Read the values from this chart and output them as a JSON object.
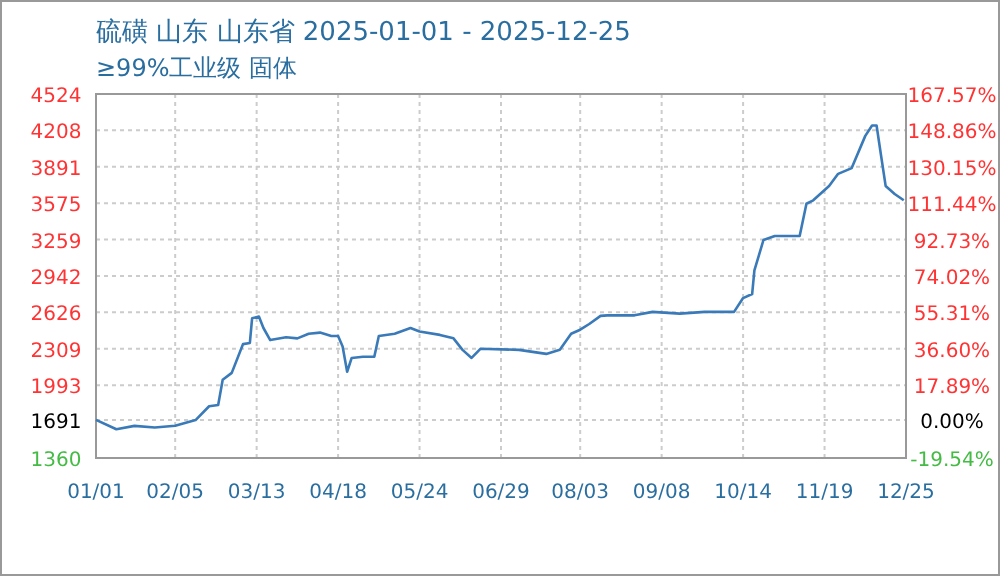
{
  "chart_data": {
    "type": "line",
    "title": "硫磺 山东 山东省 2025-01-01 - 2025-12-25",
    "subtitle": "≥99%工业级 固体",
    "x": [
      "--01-01",
      "--01-10",
      "--01-18",
      "--01-27",
      "--02-05",
      "--02-14",
      "--02-20",
      "--02-24",
      "--02-26",
      "--03-02",
      "--03-07",
      "--03-10",
      "--03-11",
      "--03-14",
      "--03-16",
      "--03-19",
      "--03-26",
      "--03-31",
      "--04-05",
      "--04-10",
      "--04-15",
      "--04-18",
      "--04-20",
      "--04-22",
      "--04-24",
      "--04-29",
      "--05-04",
      "--05-06",
      "--05-13",
      "--05-20",
      "--05-24",
      "--06-02",
      "--06-08",
      "--06-12",
      "--06-16",
      "--06-20",
      "--07-07",
      "--07-19",
      "--07-25",
      "--07-30",
      "--08-03",
      "--08-07",
      "--08-12",
      "--08-15",
      "--08-27",
      "--09-04",
      "--09-16",
      "--09-27",
      "--10-10",
      "--10-14",
      "--10-18",
      "--10-19",
      "--10-23",
      "--10-28",
      "--11-08",
      "--11-11",
      "--11-14",
      "--11-21",
      "--11-25",
      "--12-01",
      "--12-07",
      "--12-10",
      "--12-12",
      "--12-14",
      "--12-16",
      "--12-20",
      "--12-24"
    ],
    "series": [
      {
        "color": "#3a7ab8",
        "values": [
          1691,
          1610,
          1639,
          1625,
          1640,
          1690,
          1810,
          1820,
          2040,
          2100,
          2350,
          2360,
          2575,
          2590,
          2490,
          2385,
          2410,
          2400,
          2440,
          2450,
          2420,
          2420,
          2330,
          2110,
          2230,
          2240,
          2240,
          2420,
          2440,
          2490,
          2460,
          2430,
          2400,
          2300,
          2230,
          2310,
          2300,
          2265,
          2300,
          2440,
          2475,
          2525,
          2595,
          2600,
          2600,
          2630,
          2615,
          2630,
          2630,
          2750,
          2785,
          2990,
          3255,
          3290,
          3290,
          3570,
          3600,
          3725,
          3830,
          3880,
          4160,
          4250,
          4250,
          3985,
          3725,
          3655,
          3600
        ]
      }
    ],
    "xlim": [
      "--01-01",
      "--12-25"
    ],
    "xticks": [
      {
        "value": "--01-01",
        "label": "01/01"
      },
      {
        "value": "--02-05",
        "label": "02/05"
      },
      {
        "value": "--03-13",
        "label": "03/13"
      },
      {
        "value": "--04-18",
        "label": "04/18"
      },
      {
        "value": "--05-24",
        "label": "05/24"
      },
      {
        "value": "--06-29",
        "label": "06/29"
      },
      {
        "value": "--08-03",
        "label": "08/03"
      },
      {
        "value": "--09-08",
        "label": "09/08"
      },
      {
        "value": "--10-14",
        "label": "10/14"
      },
      {
        "value": "--11-19",
        "label": "11/19"
      },
      {
        "value": "--12-25",
        "label": "12/25"
      }
    ],
    "ylim": [
      1360,
      4524
    ],
    "yticks": [
      1360,
      1691,
      1993,
      2309,
      2626,
      2942,
      3259,
      3575,
      3891,
      4208,
      4524
    ],
    "y2lim": [
      -19.54,
      167.57
    ],
    "y2ticks": [
      {
        "value": -19.54,
        "label": "-19.54%"
      },
      {
        "value": 0,
        "label": "0.00%"
      },
      {
        "value": 17.89,
        "label": "17.89%"
      },
      {
        "value": 36.6,
        "label": "36.60%"
      },
      {
        "value": 55.31,
        "label": "55.31%"
      },
      {
        "value": 74.02,
        "label": "74.02%"
      },
      {
        "value": 92.73,
        "label": "92.73%"
      },
      {
        "value": 111.44,
        "label": "111.44%"
      },
      {
        "value": 130.15,
        "label": "130.15%"
      },
      {
        "value": 148.86,
        "label": "148.86%"
      },
      {
        "value": 167.57,
        "label": "167.57%"
      }
    ],
    "grid": true,
    "line_style": "solid",
    "marker": "none"
  }
}
